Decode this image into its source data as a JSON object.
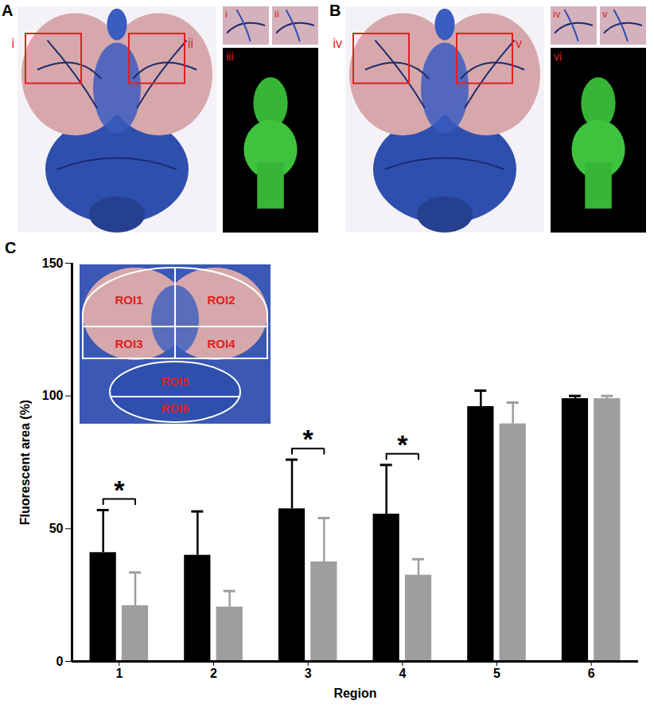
{
  "figure": {
    "panels": [
      "A",
      "B",
      "C"
    ],
    "A_insets": [
      "i",
      "ii",
      "iii"
    ],
    "B_insets": [
      "iv",
      "v",
      "vi"
    ],
    "roi_labels": [
      "ROI1",
      "ROI2",
      "ROI3",
      "ROI4",
      "ROI5",
      "ROI6"
    ]
  },
  "chart_data": {
    "type": "bar",
    "x_label": "Region",
    "y_label": "Fluorescent area (%)",
    "categories": [
      "1",
      "2",
      "3",
      "4",
      "5",
      "6"
    ],
    "series": [
      {
        "color": "#000000",
        "values": [
          41,
          40,
          57.5,
          55.5,
          96,
          99
        ],
        "errors": [
          16,
          16.5,
          18.5,
          18.5,
          6,
          1
        ]
      },
      {
        "color": "#9e9e9e",
        "values": [
          21,
          20.5,
          37.5,
          32.5,
          89.5,
          99
        ],
        "errors": [
          12.5,
          6,
          16.5,
          6,
          8,
          1
        ]
      }
    ],
    "ylim": [
      0,
      150
    ],
    "yticks": [
      0,
      50,
      100,
      150
    ],
    "grid": false,
    "annotations": [
      {
        "category": "1",
        "text": "*"
      },
      {
        "category": "3",
        "text": "*"
      },
      {
        "category": "4",
        "text": "*"
      }
    ]
  }
}
